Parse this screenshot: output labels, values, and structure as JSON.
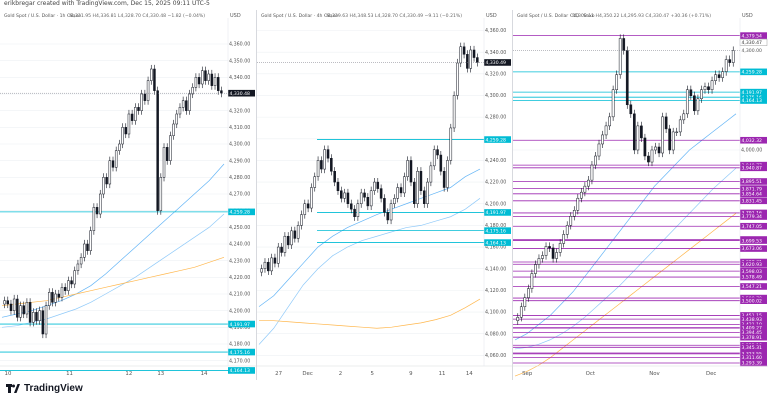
{
  "header": {
    "author_line": "erikbregar created with TradingView.com, Dec 15, 2025 09:11 UTC-5"
  },
  "footer": {
    "brand": "TradingView"
  },
  "colors": {
    "up": "#ffffff",
    "down": "#131722",
    "cyan": "#00bcd4",
    "magenta": "#9c27b0",
    "ma_blue": "#64b5f6",
    "ma_light": "#90caf9",
    "ma_orange": "#ffb74d",
    "grid": "#eef0f3"
  },
  "chart_data": [
    {
      "type": "candlestick",
      "title": "Gold Spot / U.S. Dollar · 1h · Saxo",
      "ohlc_header": "O4,331.95 H4,336.81 L4,328.70 C4,330.48 −1.82 (−0.04%)",
      "currency": "USD",
      "ylim": [
        4168,
        4372
      ],
      "y_ticks": [
        "4,360.00",
        "4,350.00",
        "4,340.00",
        "4,330.00",
        "4,320.00",
        "4,310.00",
        "4,300.00",
        "4,290.00",
        "4,280.00",
        "4,270.00",
        "4,260.00",
        "4,250.00",
        "4,240.00",
        "4,230.00",
        "4,220.00",
        "4,210.00",
        "4,200.00",
        "4,190.00",
        "4,180.00",
        "4,170.00"
      ],
      "y_tick_values": [
        4360,
        4350,
        4340,
        4330,
        4320,
        4310,
        4300,
        4290,
        4280,
        4270,
        4260,
        4250,
        4240,
        4230,
        4220,
        4210,
        4200,
        4190,
        4180,
        4170
      ],
      "x_labels": [
        "10",
        "11",
        "12",
        "13",
        "14"
      ],
      "x_label_positions": [
        0.02,
        0.29,
        0.55,
        0.69,
        0.88
      ],
      "price_line": 4330.48,
      "price_label": "4,330.48",
      "levels": [
        {
          "value": 4259.28,
          "label": "4,259.28",
          "color": "cyan"
        },
        {
          "value": 4191.97,
          "label": "4,191.97",
          "color": "cyan"
        },
        {
          "value": 4175.16,
          "label": "4,175.16",
          "color": "cyan"
        },
        {
          "value": 4164.13,
          "label": "4,164.13",
          "color": "cyan"
        }
      ],
      "closes": [
        4206,
        4204,
        4200,
        4207,
        4196,
        4203,
        4198,
        4205,
        4193,
        4199,
        4194,
        4200,
        4186,
        4203,
        4211,
        4205,
        4210,
        4208,
        4214,
        4212,
        4218,
        4216,
        4224,
        4228,
        4232,
        4240,
        4236,
        4248,
        4262,
        4258,
        4270,
        4280,
        4276,
        4290,
        4286,
        4296,
        4300,
        4310,
        4306,
        4318,
        4314,
        4322,
        4320,
        4330,
        4326,
        4338,
        4345,
        4332,
        4260,
        4280,
        4298,
        4290,
        4305,
        4312,
        4318,
        4322,
        4326,
        4320,
        4330,
        4334,
        4340,
        4336,
        4344,
        4338,
        4342,
        4335,
        4340,
        4332,
        4330.5
      ],
      "ma": [
        {
          "color": "ma_blue",
          "values": [
            4196,
            4198,
            4200,
            4203,
            4206,
            4210,
            4215,
            4222,
            4230,
            4238,
            4246,
            4254,
            4262,
            4270,
            4278,
            4288
          ]
        },
        {
          "color": "ma_light",
          "values": [
            4190,
            4191,
            4193,
            4195,
            4198,
            4201,
            4205,
            4210,
            4215,
            4220,
            4226,
            4232,
            4238,
            4244,
            4250,
            4258
          ]
        },
        {
          "color": "ma_orange",
          "values": [
            4203,
            4204,
            4205,
            4206,
            4208,
            4210,
            4212,
            4214,
            4216,
            4218,
            4220,
            4222,
            4224,
            4226,
            4229,
            4232
          ]
        }
      ]
    },
    {
      "type": "candlestick",
      "title": "Gold Spot / U.S. Dollar · 4h · Saxo",
      "ohlc_header": "O4,339.63 H4,348.53 L4,328.70 C4,330.49 −9.11 (−0.21%)",
      "currency": "USD",
      "ylim": [
        4052,
        4366
      ],
      "y_ticks": [
        "4,360.00",
        "4,340.00",
        "4,320.00",
        "4,300.00",
        "4,280.00",
        "4,260.00",
        "4,240.00",
        "4,220.00",
        "4,200.00",
        "4,180.00",
        "4,160.00",
        "4,140.00",
        "4,120.00",
        "4,100.00",
        "4,080.00",
        "4,060.00"
      ],
      "y_tick_values": [
        4360,
        4340,
        4320,
        4300,
        4280,
        4260,
        4240,
        4220,
        4200,
        4180,
        4160,
        4140,
        4120,
        4100,
        4080,
        4060
      ],
      "x_labels": [
        "27",
        "Dec",
        "2",
        "5",
        "9",
        "11",
        "14"
      ],
      "x_label_positions": [
        0.08,
        0.2,
        0.36,
        0.5,
        0.67,
        0.8,
        0.92
      ],
      "price_line": 4330.49,
      "price_label": "4,330.49",
      "levels": [
        {
          "value": 4259.28,
          "label": "4,259.28",
          "color": "cyan"
        },
        {
          "value": 4191.97,
          "label": "4,191.97",
          "color": "cyan"
        },
        {
          "value": 4175.16,
          "label": "4,175.16",
          "color": "cyan"
        },
        {
          "value": 4164.13,
          "label": "4,164.13",
          "color": "cyan"
        }
      ],
      "closes": [
        4140,
        4146,
        4138,
        4150,
        4145,
        4160,
        4155,
        4170,
        4162,
        4175,
        4168,
        4180,
        4190,
        4200,
        4196,
        4215,
        4225,
        4240,
        4232,
        4250,
        4242,
        4230,
        4220,
        4212,
        4205,
        4210,
        4200,
        4195,
        4188,
        4200,
        4210,
        4206,
        4198,
        4212,
        4220,
        4214,
        4205,
        4192,
        4185,
        4200,
        4205,
        4215,
        4210,
        4225,
        4240,
        4220,
        4200,
        4230,
        4212,
        4200,
        4220,
        4235,
        4250,
        4245,
        4230,
        4215,
        4240,
        4270,
        4300,
        4330,
        4345,
        4338,
        4325,
        4342,
        4335,
        4330.5
      ],
      "ma": [
        {
          "color": "ma_blue",
          "values": [
            4105,
            4115,
            4130,
            4145,
            4160,
            4170,
            4178,
            4184,
            4190,
            4195,
            4200,
            4205,
            4210,
            4215,
            4225,
            4232
          ]
        },
        {
          "color": "ma_light",
          "values": [
            4070,
            4085,
            4105,
            4125,
            4140,
            4152,
            4160,
            4166,
            4170,
            4174,
            4178,
            4180,
            4184,
            4188,
            4195,
            4205
          ]
        },
        {
          "color": "ma_orange",
          "values": [
            4092,
            4092,
            4091,
            4090,
            4089,
            4088,
            4087,
            4086,
            4085,
            4086,
            4088,
            4090,
            4093,
            4097,
            4104,
            4112
          ]
        }
      ]
    },
    {
      "type": "candlestick",
      "title": "Gold Spot / U.S. Dollar · 1D · Saxo",
      "ohlc_header": "O4,300.11 H4,350.22 L4,295.93 C4,330.47 +30.36 (+0.71%)",
      "currency": "USD",
      "ylim": [
        3290,
        4418
      ],
      "price_top_label": "4,330.47",
      "price_top_label2": "4,300.00",
      "price_line": 4330.47,
      "y_ticks": [
        "4,000.00"
      ],
      "y_tick_values": [
        4000
      ],
      "x_labels": [
        "Sep",
        "Oct",
        "Nov",
        "Dec"
      ],
      "x_label_positions": [
        0.04,
        0.32,
        0.6,
        0.85
      ],
      "levels": [
        {
          "value": 4379.54,
          "label": "4,379.54",
          "color": "magenta"
        },
        {
          "value": 4259.28,
          "label": "4,259.28",
          "color": "cyan"
        },
        {
          "value": 4191.97,
          "label": "4,191.97",
          "color": "cyan"
        },
        {
          "value": 4175.16,
          "label": "4,175.16",
          "color": "cyan"
        },
        {
          "value": 4164.13,
          "label": "4,164.13",
          "color": "cyan"
        },
        {
          "value": 4032.32,
          "label": "4,032.32",
          "color": "magenta"
        },
        {
          "value": 3949.77,
          "label": "3,949.77",
          "color": "magenta"
        },
        {
          "value": 3940.87,
          "label": "3,940.87",
          "color": "magenta"
        },
        {
          "value": 3895.51,
          "label": "3,895.51",
          "color": "magenta"
        },
        {
          "value": 3871.79,
          "label": "3,871.79",
          "color": "magenta"
        },
        {
          "value": 3854.64,
          "label": "3,854.64",
          "color": "magenta"
        },
        {
          "value": 3831.45,
          "label": "3,831.45",
          "color": "magenta"
        },
        {
          "value": 3791.16,
          "label": "3,791.16",
          "color": "magenta"
        },
        {
          "value": 3779.34,
          "label": "3,779.34",
          "color": "magenta"
        },
        {
          "value": 3747.05,
          "label": "3,747.05",
          "color": "magenta"
        },
        {
          "value": 3703.02,
          "label": "3,703.02",
          "color": "magenta"
        },
        {
          "value": 3699.53,
          "label": "3,699.53",
          "color": "magenta"
        },
        {
          "value": 3673.06,
          "label": "3,673.06",
          "color": "magenta"
        },
        {
          "value": 3628.31,
          "label": "3,628.31",
          "color": "magenta"
        },
        {
          "value": 3620.93,
          "label": "3,620.93",
          "color": "magenta"
        },
        {
          "value": 3598.03,
          "label": "3,598.03",
          "color": "magenta"
        },
        {
          "value": 3578.49,
          "label": "3,578.49",
          "color": "magenta"
        },
        {
          "value": 3547.21,
          "label": "3,547.21",
          "color": "magenta"
        },
        {
          "value": 3508.7,
          "label": "3,508.70",
          "color": "magenta"
        },
        {
          "value": 3500.02,
          "label": "3,500.02",
          "color": "magenta"
        },
        {
          "value": 3451.15,
          "label": "3,451.15",
          "color": "magenta"
        },
        {
          "value": 3438.93,
          "label": "3,438.93",
          "color": "magenta"
        },
        {
          "value": 3421.1,
          "label": "3,421.10",
          "color": "magenta"
        },
        {
          "value": 3410.5,
          "label": "3,410.50",
          "color": "magenta"
        },
        {
          "value": 3409.27,
          "label": "3,409.27",
          "color": "magenta"
        },
        {
          "value": 3394.45,
          "label": "3,394.45",
          "color": "magenta"
        },
        {
          "value": 3378.91,
          "label": "3,378.91",
          "color": "magenta"
        },
        {
          "value": 3352.18,
          "label": "3,352.18",
          "color": "magenta"
        },
        {
          "value": 3345.31,
          "label": "3,345.31",
          "color": "magenta"
        },
        {
          "value": 3326.38,
          "label": "3,326.38",
          "color": "magenta"
        },
        {
          "value": 3323.55,
          "label": "3,323.55",
          "color": "magenta"
        },
        {
          "value": 3311.6,
          "label": "3,311.60",
          "color": "magenta"
        },
        {
          "value": 3293.39,
          "label": "3,293.39",
          "color": "magenta"
        }
      ],
      "closes": [
        3445,
        3480,
        3510,
        3540,
        3590,
        3620,
        3640,
        3650,
        3680,
        3675,
        3640,
        3660,
        3690,
        3720,
        3750,
        3780,
        3800,
        3840,
        3860,
        3880,
        3900,
        3950,
        3980,
        4020,
        4050,
        4080,
        4110,
        4200,
        4250,
        4370,
        4330,
        4150,
        4120,
        4000,
        4080,
        4040,
        3980,
        3960,
        4000,
        4010,
        3990,
        4110,
        4070,
        4000,
        4060,
        4060,
        4100,
        4120,
        4200,
        4180,
        4130,
        4170,
        4200,
        4210,
        4200,
        4230,
        4250,
        4240,
        4260,
        4300,
        4290,
        4330
      ],
      "ma": [
        {
          "color": "ma_blue",
          "values": [
            3370,
            3390,
            3420,
            3450,
            3490,
            3530,
            3580,
            3630,
            3680,
            3730,
            3780,
            3830,
            3880,
            3920,
            3960,
            4000,
            4030,
            4060,
            4090,
            4120
          ]
        },
        {
          "color": "ma_light",
          "values": [
            3340,
            3345,
            3355,
            3370,
            3390,
            3415,
            3445,
            3480,
            3515,
            3550,
            3590,
            3630,
            3670,
            3710,
            3750,
            3790,
            3830,
            3870,
            3905,
            3940
          ]
        },
        {
          "color": "ma_orange",
          "values": [
            3250,
            3265,
            3285,
            3310,
            3340,
            3370,
            3400,
            3430,
            3460,
            3490,
            3520,
            3550,
            3580,
            3610,
            3640,
            3670,
            3700,
            3730,
            3760,
            3790
          ]
        }
      ]
    }
  ]
}
